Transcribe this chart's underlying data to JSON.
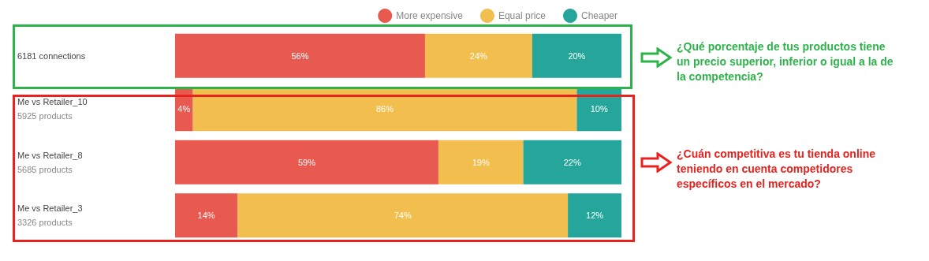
{
  "chart_data": {
    "type": "bar",
    "orientation": "horizontal",
    "stacked": true,
    "categories": [
      "6181 connections",
      "Me vs Retailer_10\n5925 products",
      "Me vs Retailer_8\n5685 products",
      "Me vs Retailer_3\n3326 products"
    ],
    "xlim": [
      0,
      100
    ],
    "series": [
      {
        "name": "More expensive",
        "color": "#e85a50",
        "values": [
          56,
          4,
          59,
          14
        ],
        "value_labels": [
          "56%",
          "4%",
          "59%",
          "14%"
        ]
      },
      {
        "name": "Equal price",
        "color": "#f2bf4f",
        "values": [
          24,
          86,
          19,
          74
        ],
        "value_labels": [
          "24%",
          "86%",
          "19%",
          "74%"
        ]
      },
      {
        "name": "Cheaper",
        "color": "#26a69a",
        "values": [
          20,
          10,
          22,
          12
        ],
        "value_labels": [
          "20%",
          "10%",
          "22%",
          "12%"
        ]
      }
    ],
    "legend": "top right",
    "annotations": [
      {
        "text": "¿Qué porcentaje de tus productos tiene un precio superior, inferior o igual a la de la competencia?"
      },
      {
        "text": "¿Cuán competitiva es tu tienda online teniendo en cuenta competidores específicos en el mercado?"
      }
    ]
  }
}
